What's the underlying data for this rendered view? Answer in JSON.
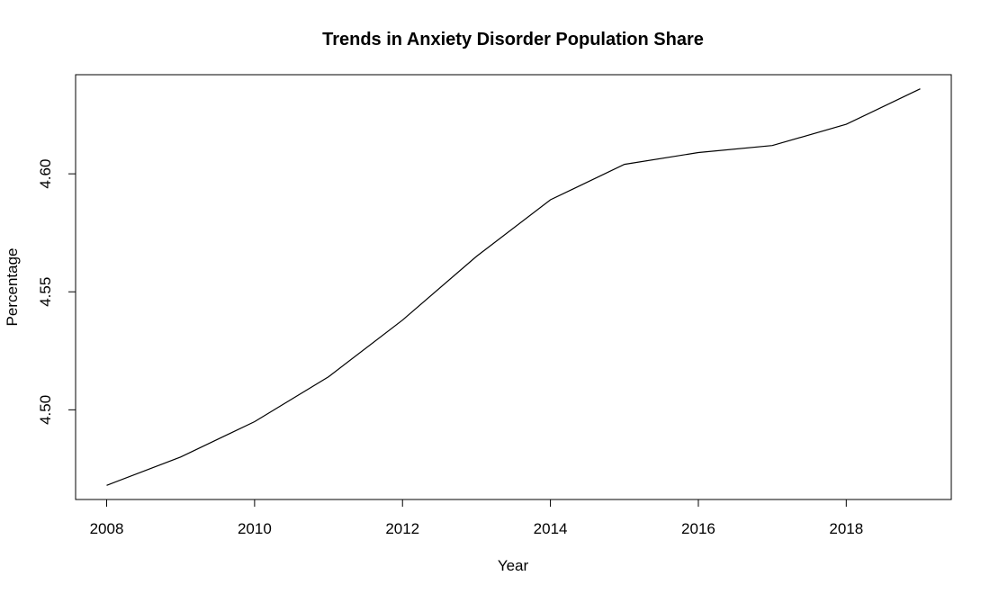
{
  "chart_data": {
    "type": "line",
    "title": "Trends in Anxiety Disorder Population Share",
    "xlabel": "Year",
    "ylabel": "Percentage",
    "x": [
      2008,
      2009,
      2010,
      2011,
      2012,
      2013,
      2014,
      2015,
      2016,
      2017,
      2018,
      2019
    ],
    "series": [
      {
        "values": [
          4.468,
          4.48,
          4.495,
          4.514,
          4.538,
          4.565,
          4.589,
          4.604,
          4.609,
          4.612,
          4.621,
          4.636
        ]
      }
    ],
    "xlim": [
      2007.58,
      2019.42
    ],
    "ylim": [
      4.462,
      4.642
    ],
    "x_ticks": [
      "2008",
      "2010",
      "2012",
      "2014",
      "2016",
      "2018"
    ],
    "y_ticks": [
      "4.50",
      "4.55",
      "4.60"
    ],
    "grid": false,
    "line_color": "#000000"
  }
}
